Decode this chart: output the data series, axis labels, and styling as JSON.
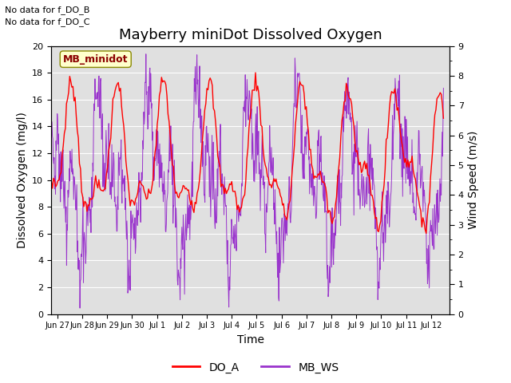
{
  "title": "Mayberry miniDot Dissolved Oxygen",
  "ylabel_left": "Dissolved Oxygen (mg/l)",
  "ylabel_right": "Wind Speed (m/s)",
  "xlabel": "Time",
  "ylim_left": [
    0,
    20
  ],
  "ylim_right": [
    0.0,
    9.0
  ],
  "yticks_left": [
    0,
    2,
    4,
    6,
    8,
    10,
    12,
    14,
    16,
    18,
    20
  ],
  "yticks_right": [
    0.0,
    1.0,
    2.0,
    3.0,
    4.0,
    5.0,
    6.0,
    7.0,
    8.0,
    9.0
  ],
  "no_data_text": [
    "No data for f_DO_B",
    "No data for f_DO_C"
  ],
  "legend_label_box": "MB_minidot",
  "legend_entries": [
    "DO_A",
    "MB_WS"
  ],
  "line_colors": [
    "red",
    "#9933cc"
  ],
  "background_color": "#e0e0e0",
  "fig_background": "#ffffff",
  "title_fontsize": 13,
  "label_fontsize": 10,
  "tick_fontsize": 8,
  "legend_fontsize": 10
}
